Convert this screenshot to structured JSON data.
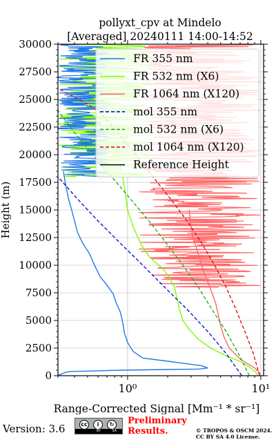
{
  "chart_data": {
    "type": "line",
    "title": [
      "pollyxt_cpv at Mindelo",
      "[Averaged] 20240111 14:00-14:52"
    ],
    "xlabel": "Range-Corrected Signal",
    "xlabel_units": "[Mm⁻¹ * sr⁻¹]",
    "ylabel": "Height (m)",
    "x_scale": "log",
    "xlim": [
      0.3,
      10.5
    ],
    "ylim": [
      0,
      30000
    ],
    "x_major_ticks": [
      1,
      10
    ],
    "x_tick_labels": [
      "10⁰",
      "10¹"
    ],
    "y_ticks": [
      0,
      2500,
      5000,
      7500,
      10000,
      12500,
      15000,
      17500,
      20000,
      22500,
      25000,
      27500,
      30000
    ],
    "y_tick_labels": [
      "0",
      "2500",
      "5000",
      "7500",
      "10000",
      "12500",
      "15000",
      "17500",
      "20000",
      "22500",
      "25000",
      "27500",
      "30000"
    ],
    "grid": true,
    "legend_position": "top-right",
    "series": [
      {
        "name": "FR 355 nm",
        "color": "#1f78e8",
        "style": "solid",
        "x": [
          0.3,
          0.32,
          0.34,
          0.37,
          0.5,
          0.9,
          3.4,
          4.0,
          3.6,
          2.2,
          1.3,
          1.1,
          1.0,
          0.95,
          0.92,
          0.9,
          0.88,
          0.82,
          0.78,
          0.7,
          0.62,
          0.58,
          0.55,
          0.52,
          0.46,
          0.42,
          0.4,
          0.38,
          0.36,
          0.34,
          0.33
        ],
        "y": [
          50,
          150,
          300,
          380,
          420,
          500,
          600,
          700,
          900,
          1250,
          1600,
          2200,
          3000,
          3800,
          4800,
          5300,
          5800,
          6600,
          7400,
          8200,
          9000,
          9700,
          10300,
          11000,
          12000,
          13000,
          14000,
          15000,
          16000,
          17500,
          18500
        ],
        "noise_above": 18000,
        "noise_x_range": [
          0.3,
          0.75
        ]
      },
      {
        "name": "FR 532 nm (X6)",
        "color": "#7cfc00",
        "style": "solid",
        "x": [
          9.5,
          9.0,
          8.2,
          7.0,
          5.5,
          4.2,
          3.4,
          2.9,
          2.6,
          2.45,
          2.35,
          2.25,
          2.1,
          1.95,
          1.8,
          1.6,
          1.45,
          1.35,
          1.25,
          1.1,
          1.0,
          0.95,
          0.85,
          0.75
        ],
        "y": [
          100,
          400,
          800,
          1300,
          1800,
          2500,
          3300,
          4200,
          5000,
          6000,
          7000,
          8000,
          8700,
          9300,
          9800,
          10300,
          10800,
          11300,
          12000,
          13500,
          15000,
          17000,
          20000,
          23000
        ],
        "noise_above": 18000,
        "noise_x_range": [
          0.3,
          1.6
        ]
      },
      {
        "name": "FR 1064 nm (X120)",
        "color": "#ff6464",
        "style": "solid",
        "x": [
          10.0,
          9.0,
          7.0,
          5.8,
          5.3,
          5.0,
          4.8,
          4.6,
          4.3,
          4.0,
          3.7,
          3.5,
          3.3,
          3.1,
          3.0,
          2.9
        ],
        "y": [
          150,
          700,
          1500,
          2500,
          3500,
          4500,
          5500,
          6500,
          7500,
          8500,
          9500,
          10500,
          11500,
          12500,
          13500,
          15000
        ],
        "noise_above": 8000,
        "noise_x_range": [
          1.2,
          10.0
        ]
      },
      {
        "name": "mol 355 nm",
        "color": "#0000cc",
        "style": "dashed",
        "x": [
          7.2,
          5.5,
          4.0,
          2.8,
          1.9,
          1.3,
          0.88,
          0.6,
          0.42,
          0.3
        ],
        "y": [
          0,
          2000,
          4000,
          6000,
          8000,
          10000,
          12000,
          14000,
          16000,
          18000
        ]
      },
      {
        "name": "mol 532 nm (X6)",
        "color": "#11aa11",
        "style": "dashed",
        "x": [
          8.2,
          6.8,
          5.5,
          4.3,
          3.4,
          2.6,
          1.95,
          1.45,
          1.05,
          0.76,
          0.55,
          0.4,
          0.3
        ],
        "y": [
          0,
          2000,
          4000,
          6000,
          8000,
          10000,
          12000,
          14000,
          16000,
          18000,
          20000,
          22000,
          24000
        ]
      },
      {
        "name": "mol 1064 nm (X120)",
        "color": "#dd0000",
        "style": "dashed",
        "x": [
          9.8,
          8.8,
          7.6,
          6.5,
          5.5,
          4.5,
          3.6,
          2.8,
          2.1,
          1.55,
          1.15,
          0.84,
          0.6,
          0.43,
          0.3
        ],
        "y": [
          0,
          2000,
          4000,
          6000,
          8000,
          10000,
          12000,
          14000,
          16000,
          18000,
          20000,
          22000,
          24000,
          25000,
          26000
        ]
      },
      {
        "name": "Reference Height",
        "color": "#000000",
        "style": "solid",
        "x": [],
        "y": []
      }
    ]
  },
  "footer": {
    "version_label": "Version: 3.6",
    "license_badge": {
      "icon": "cc-by-sa-icon",
      "parts": [
        "cc",
        "BY",
        "SA"
      ],
      "colors": [
        "#aab2ab",
        "#000000"
      ]
    },
    "preliminary_lines": [
      "Preliminary",
      "Results."
    ],
    "preliminary_color": "#ff0000",
    "copyright_lines": [
      "© TROPOS & OSCM 2024.",
      "CC BY SA 4.0 License."
    ]
  }
}
